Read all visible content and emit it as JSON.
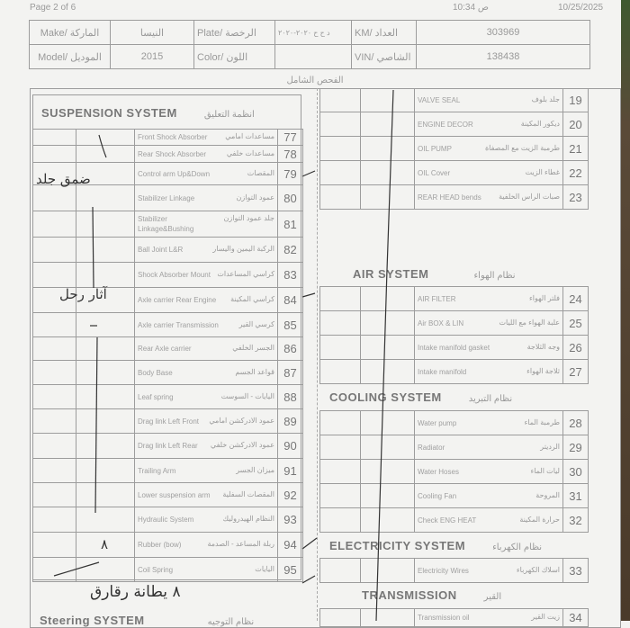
{
  "page": {
    "page_label": "Page 2 of 6",
    "time": "10:34 ص",
    "date": "10/25/2025",
    "section_title": "الفحص الشامل"
  },
  "vehicle": {
    "make_label": "Make/ الماركة",
    "make": "النيسا",
    "plate_label": "Plate/ الرخصة",
    "plate": "د ح ح ٢٠٢٠-٢٠٢٠",
    "km_label": "KM/ العداد",
    "km": "303969",
    "model_label": "Model/ الموديل",
    "model": "2015",
    "color_label": "Color/ اللون",
    "color": "",
    "vin_label": "VIN/ الشاصي",
    "vin": "138438"
  },
  "suspension": {
    "title": "SUSPENSION SYSTEM",
    "title_ar": "انظمة التعليق",
    "items": [
      {
        "no": "77",
        "en": "Front Shock Absorber",
        "ar": "مساعدات امامي"
      },
      {
        "no": "78",
        "en": "Rear Shock Absorber",
        "ar": "مساعدات خلفي"
      },
      {
        "no": "79",
        "en": "Control arm Up&Down",
        "ar": "المقصات"
      },
      {
        "no": "80",
        "en": "Stabilizer Linkage",
        "ar": "عمود التوازن"
      },
      {
        "no": "81",
        "en": "Stabilizer Linkage&Bushing",
        "ar": "جلد عمود التوازن"
      },
      {
        "no": "82",
        "en": "Ball Joint L&R",
        "ar": "الركبة اليمين واليسار"
      },
      {
        "no": "83",
        "en": "Shock Absorber Mount",
        "ar": "كراسي المساعدات"
      },
      {
        "no": "84",
        "en": "Axle carrier Rear Engine",
        "ar": "كراسي المكينة"
      },
      {
        "no": "85",
        "en": "Axle carrier Transmission",
        "ar": "كرسي القير"
      },
      {
        "no": "86",
        "en": "Rear Axle carrier",
        "ar": "الجسر الخلفي"
      },
      {
        "no": "87",
        "en": "Body Base",
        "ar": "قواعد الجسم"
      },
      {
        "no": "88",
        "en": "Leaf spring",
        "ar": "اليايات - السوست"
      },
      {
        "no": "89",
        "en": "Drag link Left Front",
        "ar": "عمود الادركشن امامي"
      },
      {
        "no": "90",
        "en": "Drag link Left Rear",
        "ar": "عمود الادركشن خلفي"
      },
      {
        "no": "91",
        "en": "Trailing Arm",
        "ar": "ميزان الجسر"
      },
      {
        "no": "92",
        "en": "Lower suspension arm",
        "ar": "المقصات السفلية"
      },
      {
        "no": "93",
        "en": "Hydraulic System",
        "ar": "النظام الهيدروليك"
      },
      {
        "no": "94",
        "en": "Rubber (bow)",
        "ar": "ربلة المساعد - الصدمة"
      },
      {
        "no": "95",
        "en": "Coil Spring",
        "ar": "اليايات"
      }
    ]
  },
  "engine_items": [
    {
      "no": "19",
      "en": "VALVE SEAL",
      "ar": "جلد بلوف"
    },
    {
      "no": "20",
      "en": "ENGINE DECOR",
      "ar": "ديكور المكينة"
    },
    {
      "no": "21",
      "en": "OIL PUMP",
      "ar": "طرمبة الزيت مع المصفاة"
    },
    {
      "no": "22",
      "en": "OIL Cover",
      "ar": "غطاء الزيت"
    },
    {
      "no": "23",
      "en": "REAR HEAD bends",
      "ar": "صبات الراس الخلفية"
    }
  ],
  "air": {
    "title": "AIR SYSTEM",
    "title_ar": "نظام الهواء",
    "items": [
      {
        "no": "24",
        "en": "AIR FILTER",
        "ar": "فلتر الهواء"
      },
      {
        "no": "25",
        "en": "Air BOX & LIN",
        "ar": "علبة الهواء مع الليات"
      },
      {
        "no": "26",
        "en": "Intake manifold gasket",
        "ar": "وجه الثلاجة"
      },
      {
        "no": "27",
        "en": "Intake manifold",
        "ar": "ثلاجة الهواء"
      }
    ]
  },
  "cooling": {
    "title": "COOLING SYSTEM",
    "title_ar": "نظام التبريد",
    "items": [
      {
        "no": "28",
        "en": "Water pump",
        "ar": "طرمبة الماء"
      },
      {
        "no": "29",
        "en": "Radiator",
        "ar": "الرديتر"
      },
      {
        "no": "30",
        "en": "Water Hoses",
        "ar": "ليات الماء"
      },
      {
        "no": "31",
        "en": "Cooling Fan",
        "ar": "المروحة"
      },
      {
        "no": "32",
        "en": "Check ENG HEAT",
        "ar": "حرارة المكينة"
      }
    ]
  },
  "electricity": {
    "title": "ELECTRICITY SYSTEM",
    "title_ar": "نظام الكهرباء",
    "items": [
      {
        "no": "33",
        "en": "Electricity Wires",
        "ar": "اسلاك الكهرباء"
      }
    ]
  },
  "transmission": {
    "title": "TRANSMISSION",
    "title_ar": "القير",
    "items": [
      {
        "no": "34",
        "en": "Transmission oil",
        "ar": "زيت القير"
      }
    ]
  },
  "steering": {
    "title": "Steering SYSTEM",
    "title_ar": "نظام التوجيه"
  },
  "handwriting": {
    "note_79": "ضمق جلد",
    "note_84": "آثار رحل",
    "mark_94": "٨",
    "note_bottom": "٨ يطانة رقارق"
  }
}
